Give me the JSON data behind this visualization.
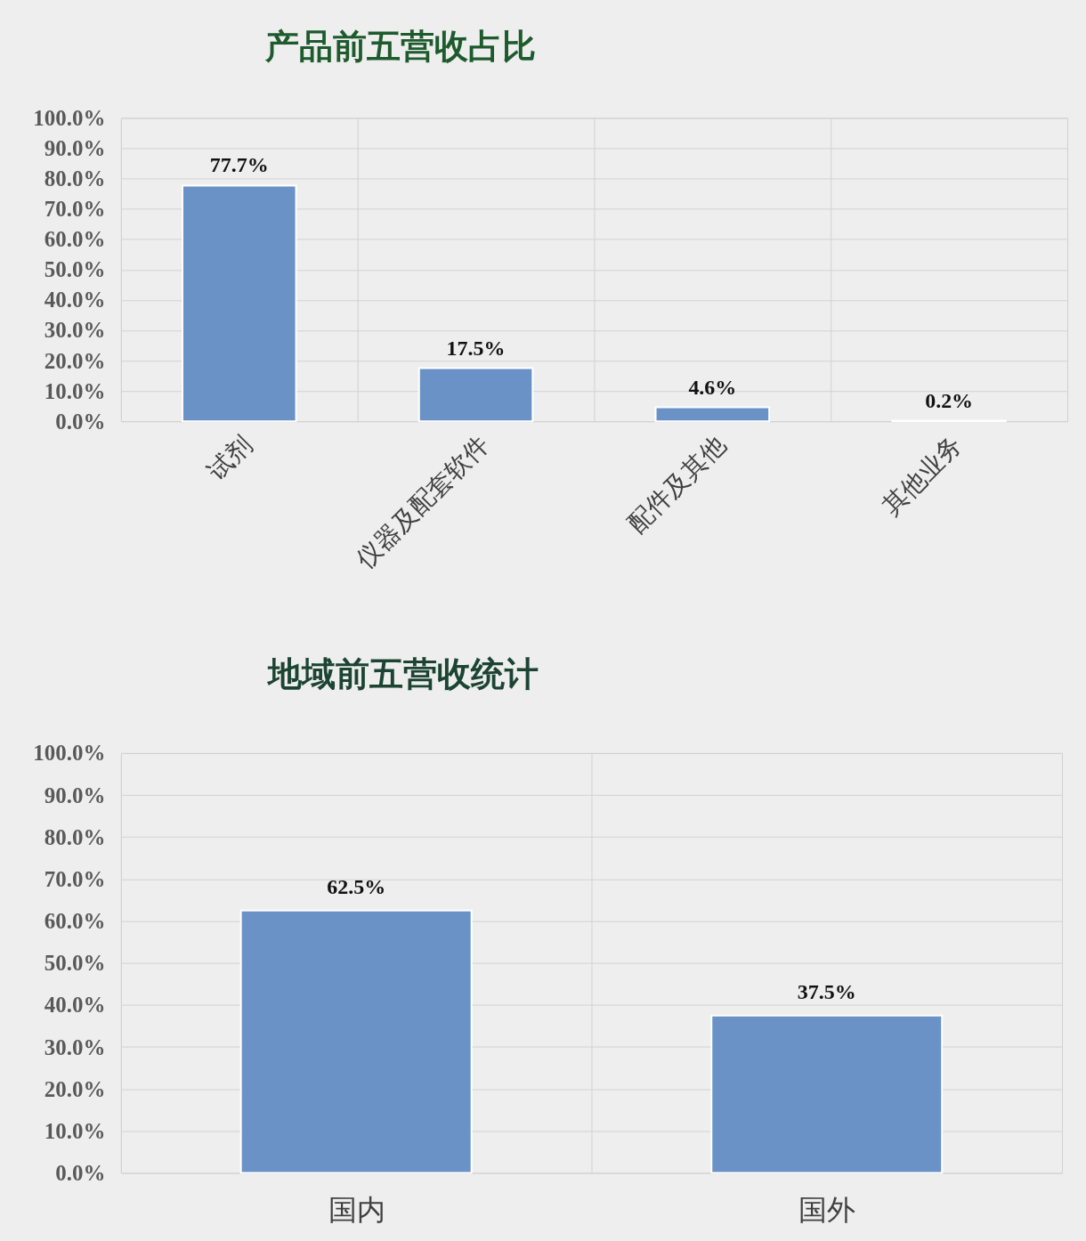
{
  "chart_data": [
    {
      "type": "bar",
      "title": "产品前五营收占比",
      "categories": [
        "试剂",
        "仪器及配套软件",
        "配件及其他",
        "其他业务"
      ],
      "values": [
        77.7,
        17.5,
        4.6,
        0.2
      ],
      "value_labels": [
        "77.7%",
        "17.5%",
        "4.6%",
        "0.2%"
      ],
      "color": "#6a92c7",
      "ylim": [
        0,
        100
      ],
      "yticks": [
        {
          "value": 0,
          "label": "0.0%"
        },
        {
          "value": 10,
          "label": "10.0%"
        },
        {
          "value": 20,
          "label": "20.0%"
        },
        {
          "value": 30,
          "label": "30.0%"
        },
        {
          "value": 40,
          "label": "40.0%"
        },
        {
          "value": 50,
          "label": "50.0%"
        },
        {
          "value": 60,
          "label": "60.0%"
        },
        {
          "value": 70,
          "label": "70.0%"
        },
        {
          "value": 80,
          "label": "80.0%"
        },
        {
          "value": 90,
          "label": "90.0%"
        },
        {
          "value": 100,
          "label": "100.0%"
        }
      ],
      "grid": true
    },
    {
      "type": "bar",
      "title": "地域前五营收统计",
      "categories": [
        "国内",
        "国外"
      ],
      "values": [
        62.5,
        37.5
      ],
      "value_labels": [
        "62.5%",
        "37.5%"
      ],
      "color": "#6a92c7",
      "ylim": [
        0,
        100
      ],
      "yticks": [
        {
          "value": 0,
          "label": "0.0%"
        },
        {
          "value": 10,
          "label": "10.0%"
        },
        {
          "value": 20,
          "label": "20.0%"
        },
        {
          "value": 30,
          "label": "30.0%"
        },
        {
          "value": 40,
          "label": "40.0%"
        },
        {
          "value": 50,
          "label": "50.0%"
        },
        {
          "value": 60,
          "label": "60.0%"
        },
        {
          "value": 70,
          "label": "70.0%"
        },
        {
          "value": 80,
          "label": "80.0%"
        },
        {
          "value": 90,
          "label": "90.0%"
        },
        {
          "value": 100,
          "label": "100.0%"
        }
      ],
      "grid": true
    }
  ]
}
